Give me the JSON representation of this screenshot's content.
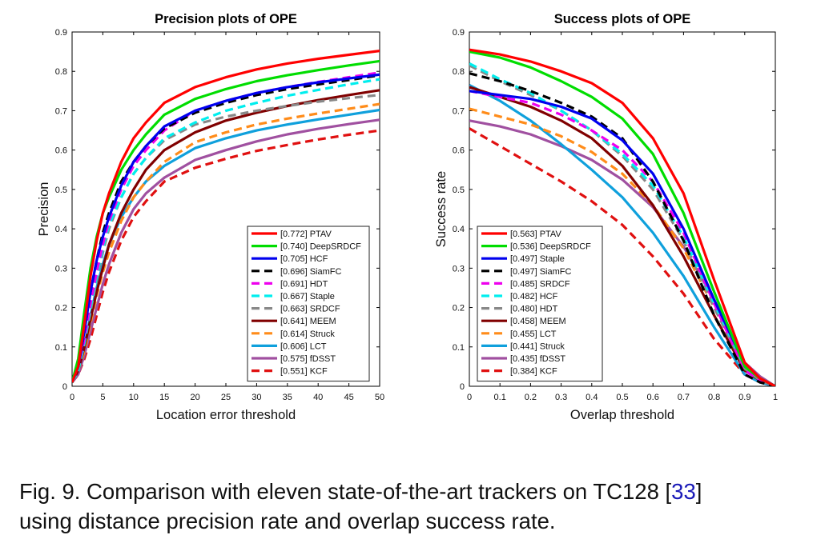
{
  "chart_data": [
    {
      "type": "line",
      "title": "Precision plots of OPE",
      "xlabel": "Location error threshold",
      "ylabel": "Precision",
      "xlim": [
        0,
        50
      ],
      "ylim": [
        0,
        0.9
      ],
      "xticks": [
        0,
        5,
        10,
        15,
        20,
        25,
        30,
        35,
        40,
        45,
        50
      ],
      "yticks": [
        0,
        0.1,
        0.2,
        0.3,
        0.4,
        0.5,
        0.6,
        0.7,
        0.8,
        0.9
      ],
      "x": [
        0,
        1,
        2,
        3,
        4,
        5,
        6,
        8,
        10,
        12,
        15,
        20,
        25,
        30,
        35,
        40,
        45,
        50
      ],
      "legend_position": "bottom-right",
      "grid": false,
      "series": [
        {
          "name": "[0.772] PTAV",
          "color": "#ff0000",
          "dash": "solid",
          "values": [
            0.01,
            0.05,
            0.16,
            0.28,
            0.37,
            0.44,
            0.49,
            0.57,
            0.63,
            0.67,
            0.72,
            0.76,
            0.785,
            0.805,
            0.82,
            0.832,
            0.842,
            0.852
          ]
        },
        {
          "name": "[0.740] DeepSRDCF",
          "color": "#00dd00",
          "dash": "solid",
          "values": [
            0.01,
            0.07,
            0.19,
            0.3,
            0.38,
            0.44,
            0.48,
            0.55,
            0.6,
            0.64,
            0.69,
            0.73,
            0.755,
            0.775,
            0.79,
            0.803,
            0.815,
            0.826
          ]
        },
        {
          "name": "[0.705] HCF",
          "color": "#0000ee",
          "dash": "solid",
          "values": [
            0.01,
            0.05,
            0.14,
            0.24,
            0.32,
            0.38,
            0.43,
            0.51,
            0.57,
            0.61,
            0.66,
            0.7,
            0.725,
            0.745,
            0.76,
            0.772,
            0.782,
            0.792
          ]
        },
        {
          "name": "[0.696] SiamFC",
          "color": "#000000",
          "dash": "10,6",
          "values": [
            0.01,
            0.05,
            0.14,
            0.24,
            0.32,
            0.39,
            0.44,
            0.52,
            0.57,
            0.61,
            0.655,
            0.695,
            0.72,
            0.74,
            0.755,
            0.767,
            0.778,
            0.79
          ]
        },
        {
          "name": "[0.691] HDT",
          "color": "#ee00ee",
          "dash": "10,6",
          "values": [
            0.01,
            0.05,
            0.12,
            0.21,
            0.29,
            0.36,
            0.42,
            0.5,
            0.56,
            0.6,
            0.65,
            0.7,
            0.725,
            0.745,
            0.76,
            0.773,
            0.785,
            0.797
          ]
        },
        {
          "name": "[0.667] Staple",
          "color": "#00eeee",
          "dash": "10,6",
          "values": [
            0.01,
            0.04,
            0.11,
            0.2,
            0.28,
            0.35,
            0.41,
            0.48,
            0.54,
            0.58,
            0.63,
            0.67,
            0.7,
            0.72,
            0.738,
            0.753,
            0.767,
            0.78
          ]
        },
        {
          "name": "[0.663] SRDCF",
          "color": "#888888",
          "dash": "10,6",
          "values": [
            0.01,
            0.04,
            0.11,
            0.19,
            0.27,
            0.34,
            0.4,
            0.48,
            0.54,
            0.58,
            0.625,
            0.665,
            0.685,
            0.7,
            0.712,
            0.723,
            0.732,
            0.74
          ]
        },
        {
          "name": "[0.641] MEEM",
          "color": "#800000",
          "dash": "solid",
          "values": [
            0.01,
            0.04,
            0.1,
            0.17,
            0.24,
            0.3,
            0.36,
            0.44,
            0.5,
            0.55,
            0.6,
            0.645,
            0.675,
            0.695,
            0.712,
            0.727,
            0.74,
            0.752
          ]
        },
        {
          "name": "[0.614] Struck",
          "color": "#ff8c1a",
          "dash": "10,6",
          "values": [
            0.01,
            0.04,
            0.09,
            0.16,
            0.23,
            0.29,
            0.34,
            0.42,
            0.48,
            0.52,
            0.57,
            0.62,
            0.645,
            0.665,
            0.68,
            0.693,
            0.705,
            0.717
          ]
        },
        {
          "name": "[0.606] LCT",
          "color": "#0fa0dc",
          "dash": "solid",
          "values": [
            0.01,
            0.04,
            0.1,
            0.18,
            0.25,
            0.31,
            0.36,
            0.43,
            0.48,
            0.52,
            0.56,
            0.605,
            0.63,
            0.65,
            0.665,
            0.678,
            0.69,
            0.702
          ]
        },
        {
          "name": "[0.575] fDSST",
          "color": "#a050a0",
          "dash": "solid",
          "values": [
            0.01,
            0.03,
            0.08,
            0.14,
            0.2,
            0.26,
            0.31,
            0.39,
            0.45,
            0.49,
            0.53,
            0.575,
            0.6,
            0.622,
            0.64,
            0.654,
            0.666,
            0.677
          ]
        },
        {
          "name": "[0.551] KCF",
          "color": "#e01010",
          "dash": "10,6",
          "values": [
            0.01,
            0.03,
            0.07,
            0.12,
            0.18,
            0.24,
            0.29,
            0.37,
            0.43,
            0.47,
            0.52,
            0.555,
            0.578,
            0.598,
            0.613,
            0.627,
            0.639,
            0.65
          ]
        }
      ]
    },
    {
      "type": "line",
      "title": "Success plots of OPE",
      "xlabel": "Overlap threshold",
      "ylabel": "Success rate",
      "xlim": [
        0,
        1
      ],
      "ylim": [
        0,
        0.9
      ],
      "xticks": [
        0,
        0.1,
        0.2,
        0.3,
        0.4,
        0.5,
        0.6,
        0.7,
        0.8,
        0.9,
        1
      ],
      "yticks": [
        0,
        0.1,
        0.2,
        0.3,
        0.4,
        0.5,
        0.6,
        0.7,
        0.8,
        0.9
      ],
      "x": [
        0,
        0.1,
        0.2,
        0.3,
        0.4,
        0.5,
        0.6,
        0.7,
        0.8,
        0.9,
        0.95,
        1
      ],
      "legend_position": "bottom-left",
      "grid": false,
      "series": [
        {
          "name": "[0.563] PTAV",
          "color": "#ff0000",
          "dash": "solid",
          "values": [
            0.855,
            0.843,
            0.825,
            0.8,
            0.77,
            0.72,
            0.63,
            0.49,
            0.27,
            0.06,
            0.02,
            0.0
          ]
        },
        {
          "name": "[0.536] DeepSRDCF",
          "color": "#00dd00",
          "dash": "solid",
          "values": [
            0.85,
            0.835,
            0.81,
            0.775,
            0.735,
            0.68,
            0.59,
            0.44,
            0.24,
            0.05,
            0.02,
            0.0
          ]
        },
        {
          "name": "[0.497] Staple",
          "color": "#0000ee",
          "dash": "solid",
          "values": [
            0.75,
            0.74,
            0.73,
            0.71,
            0.68,
            0.625,
            0.54,
            0.4,
            0.22,
            0.055,
            0.02,
            0.0
          ]
        },
        {
          "name": "[0.497] SiamFC",
          "color": "#000000",
          "dash": "10,6",
          "values": [
            0.795,
            0.775,
            0.75,
            0.72,
            0.685,
            0.63,
            0.52,
            0.37,
            0.18,
            0.03,
            0.01,
            0.0
          ]
        },
        {
          "name": "[0.485] SRDCF",
          "color": "#ee00ee",
          "dash": "10,6",
          "values": [
            0.75,
            0.735,
            0.72,
            0.69,
            0.65,
            0.6,
            0.52,
            0.39,
            0.21,
            0.04,
            0.015,
            0.0
          ]
        },
        {
          "name": "[0.482] HCF",
          "color": "#00eeee",
          "dash": "10,6",
          "values": [
            0.82,
            0.78,
            0.745,
            0.7,
            0.65,
            0.59,
            0.51,
            0.38,
            0.21,
            0.05,
            0.02,
            0.0
          ]
        },
        {
          "name": "[0.480] HDT",
          "color": "#888888",
          "dash": "10,6",
          "values": [
            0.815,
            0.775,
            0.74,
            0.7,
            0.65,
            0.585,
            0.5,
            0.37,
            0.2,
            0.045,
            0.015,
            0.0
          ]
        },
        {
          "name": "[0.458] MEEM",
          "color": "#800000",
          "dash": "solid",
          "values": [
            0.76,
            0.735,
            0.71,
            0.675,
            0.63,
            0.56,
            0.46,
            0.33,
            0.18,
            0.04,
            0.015,
            0.0
          ]
        },
        {
          "name": "[0.455] LCT",
          "color": "#ff8c1a",
          "dash": "10,6",
          "values": [
            0.705,
            0.685,
            0.665,
            0.635,
            0.595,
            0.54,
            0.46,
            0.35,
            0.2,
            0.05,
            0.02,
            0.0
          ]
        },
        {
          "name": "[0.441] Struck",
          "color": "#0fa0dc",
          "dash": "solid",
          "values": [
            0.765,
            0.725,
            0.675,
            0.615,
            0.55,
            0.48,
            0.39,
            0.28,
            0.15,
            0.03,
            0.01,
            0.0
          ]
        },
        {
          "name": "[0.435] fDSST",
          "color": "#a050a0",
          "dash": "solid",
          "values": [
            0.675,
            0.66,
            0.64,
            0.61,
            0.575,
            0.525,
            0.455,
            0.355,
            0.22,
            0.06,
            0.025,
            0.0
          ]
        },
        {
          "name": "[0.384] KCF",
          "color": "#e01010",
          "dash": "10,6",
          "values": [
            0.655,
            0.61,
            0.565,
            0.52,
            0.47,
            0.41,
            0.33,
            0.235,
            0.12,
            0.03,
            0.01,
            0.0
          ]
        }
      ]
    }
  ],
  "caption": {
    "prefix": "Fig. 9. Comparison with eleven state-of-the-art trackers on TC128 [",
    "ref": "33",
    "suffix": "]",
    "line2": "using distance precision rate and overlap success rate."
  }
}
